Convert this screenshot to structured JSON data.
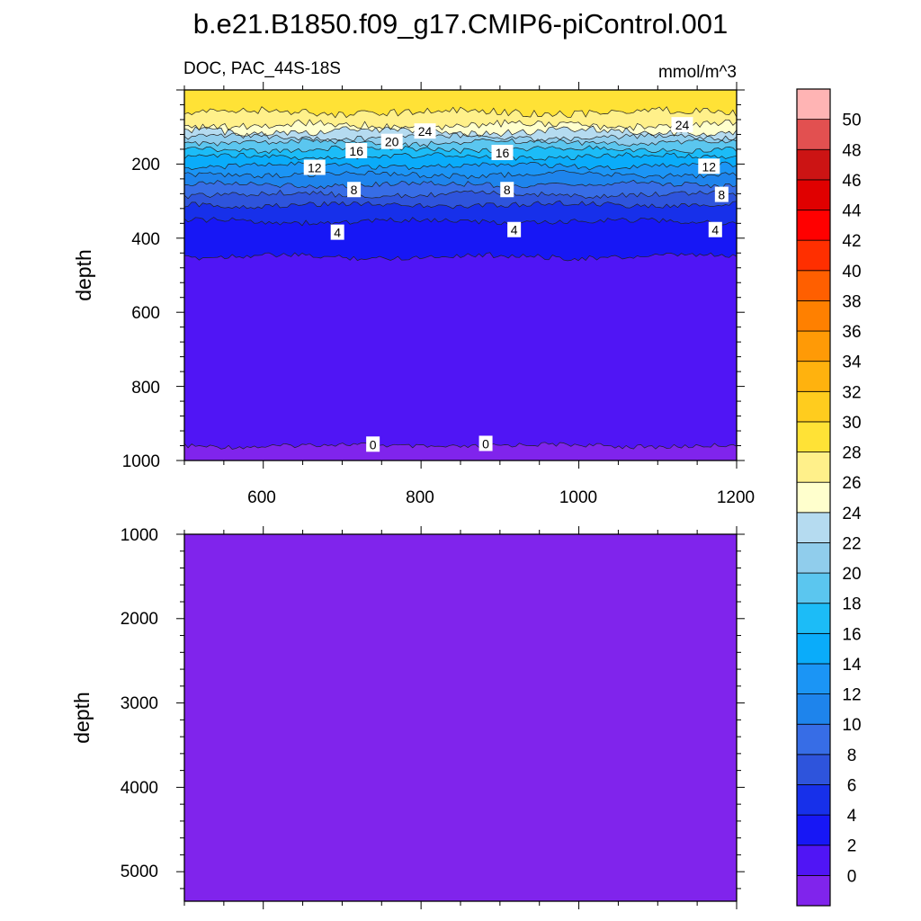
{
  "chart_data": [
    {
      "type": "contour",
      "title": "b.e21.B1850.f09_g17.CMIP6-piControl.001",
      "left_subtitle": "DOC, PAC_44S-18S",
      "right_subtitle": "mmol/m^3",
      "ylabel": "depth",
      "xlim": [
        500,
        1200
      ],
      "ylim": [
        1000,
        0
      ],
      "xticks": [
        "600",
        "800",
        "1000",
        "1200"
      ],
      "yticks": [
        "200",
        "400",
        "600",
        "800",
        "1000"
      ],
      "levels": [
        0,
        2,
        4,
        6,
        8,
        10,
        12,
        14,
        16,
        18,
        20,
        22,
        24,
        26,
        28,
        30,
        32,
        34,
        36,
        38,
        40,
        42,
        44,
        46,
        48,
        50
      ],
      "contour_depths": [
        {
          "level": 0,
          "depth": 960
        },
        {
          "level": 2,
          "depth": 450
        },
        {
          "level": 4,
          "depth": 355
        },
        {
          "level": 6,
          "depth": 310
        },
        {
          "level": 8,
          "depth": 282
        },
        {
          "level": 10,
          "depth": 255
        },
        {
          "level": 12,
          "depth": 228
        },
        {
          "level": 14,
          "depth": 205
        },
        {
          "level": 16,
          "depth": 180
        },
        {
          "level": 18,
          "depth": 160
        },
        {
          "level": 20,
          "depth": 142
        },
        {
          "level": 22,
          "depth": 128
        },
        {
          "level": 24,
          "depth": 112
        },
        {
          "level": 26,
          "depth": 95
        },
        {
          "level": 28,
          "depth": 60
        }
      ],
      "contour_labels": [
        {
          "text": "24",
          "x": 805,
          "depth": 112
        },
        {
          "text": "24",
          "x": 1131,
          "depth": 95
        },
        {
          "text": "20",
          "x": 763,
          "depth": 140
        },
        {
          "text": "16",
          "x": 718,
          "depth": 165
        },
        {
          "text": "16",
          "x": 903,
          "depth": 170
        },
        {
          "text": "12",
          "x": 665,
          "depth": 210
        },
        {
          "text": "12",
          "x": 1165,
          "depth": 207
        },
        {
          "text": "8",
          "x": 715,
          "depth": 270
        },
        {
          "text": "8",
          "x": 909,
          "depth": 270
        },
        {
          "text": "8",
          "x": 1181,
          "depth": 283
        },
        {
          "text": "4",
          "x": 694,
          "depth": 385
        },
        {
          "text": "4",
          "x": 918,
          "depth": 378
        },
        {
          "text": "4",
          "x": 1173,
          "depth": 378
        },
        {
          "text": "0",
          "x": 739,
          "depth": 957
        },
        {
          "text": "0",
          "x": 882,
          "depth": 955
        }
      ]
    },
    {
      "type": "contour",
      "ylabel": "depth",
      "xlim": [
        500,
        1200
      ],
      "ylim": [
        5350,
        1000
      ],
      "yticks": [
        "1000",
        "2000",
        "3000",
        "4000",
        "5000"
      ],
      "fill_level": 0
    }
  ],
  "colorbar": {
    "labels": [
      "0",
      "2",
      "4",
      "6",
      "8",
      "10",
      "12",
      "14",
      "16",
      "18",
      "20",
      "22",
      "24",
      "26",
      "28",
      "30",
      "32",
      "34",
      "36",
      "38",
      "40",
      "42",
      "44",
      "46",
      "48",
      "50"
    ],
    "colors": [
      "#8024ec",
      "#5015f5",
      "#1717f5",
      "#1730ea",
      "#2e54dc",
      "#376de6",
      "#1e84ec",
      "#1b95f5",
      "#0aacfa",
      "#1cbcf7",
      "#5bc6ef",
      "#90cdec",
      "#b5dbf0",
      "#ffffcd",
      "#fff08a",
      "#ffe236",
      "#ffcc1e",
      "#ffb20e",
      "#ff9a06",
      "#ff8000",
      "#ff5f00",
      "#ff2f00",
      "#ff0000",
      "#e00000",
      "#cc1414",
      "#e25050",
      "#ffb4b4"
    ]
  }
}
